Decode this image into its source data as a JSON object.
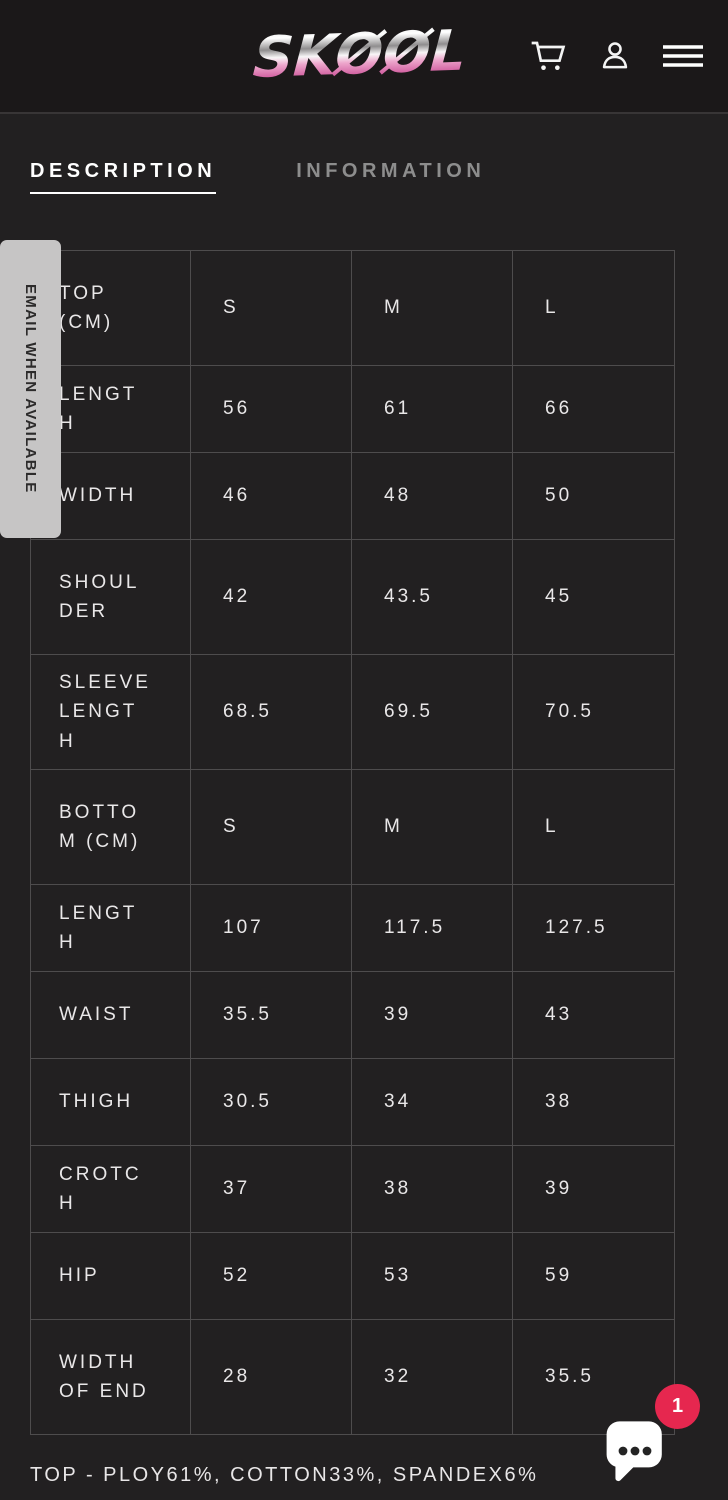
{
  "header": {
    "logo_text": "SKØØL",
    "icons": [
      {
        "name": "cart-icon"
      },
      {
        "name": "account-icon"
      },
      {
        "name": "menu-icon"
      }
    ]
  },
  "tabs": [
    {
      "label": "DESCRIPTION",
      "active": true
    },
    {
      "label": "INFORMATION",
      "active": false
    }
  ],
  "email_tab": {
    "label": "EMAIL WHEN AVAILABLE"
  },
  "size_table": {
    "rows": [
      {
        "label": "TOP (CM)",
        "values": [
          "S",
          "M",
          "L"
        ]
      },
      {
        "label": "LENGTH",
        "values": [
          "56",
          "61",
          "66"
        ]
      },
      {
        "label": "WIDTH",
        "values": [
          "46",
          "48",
          "50"
        ]
      },
      {
        "label": "SHOULDER",
        "values": [
          "42",
          "43.5",
          "45"
        ]
      },
      {
        "label": "SLEEVE LENGTH",
        "values": [
          "68.5",
          "69.5",
          "70.5"
        ]
      },
      {
        "label": "BOTTOM (CM)",
        "values": [
          "S",
          "M",
          "L"
        ]
      },
      {
        "label": "LENGTH",
        "values": [
          "107",
          "117.5",
          "127.5"
        ]
      },
      {
        "label": "WAIST",
        "values": [
          "35.5",
          "39",
          "43"
        ]
      },
      {
        "label": "THIGH",
        "values": [
          "30.5",
          "34",
          "38"
        ]
      },
      {
        "label": "CROTCH",
        "values": [
          "37",
          "38",
          "39"
        ]
      },
      {
        "label": "HIP",
        "values": [
          "52",
          "53",
          "59"
        ]
      },
      {
        "label": "WIDTH OF END",
        "values": [
          "28",
          "32",
          "35.5"
        ]
      }
    ]
  },
  "composition_note": "TOP - PLOY61%, COTTON33%, SPANDEX6%",
  "chat": {
    "unread_count": "1"
  },
  "colors": {
    "page_bg": "#222021",
    "header_bg": "#1b1819",
    "table_border": "#4e4c4d",
    "text_primary": "#e9e7e8",
    "tab_inactive": "#8d8d8d",
    "email_tab_bg": "#c6c5c5",
    "badge_red": "#e6274f",
    "logo_pink": "#cc5298"
  }
}
